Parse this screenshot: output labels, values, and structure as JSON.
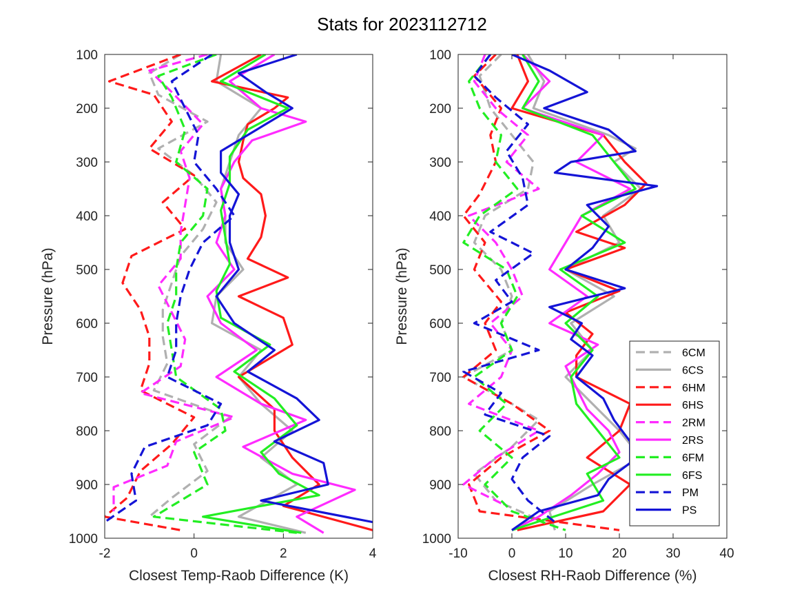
{
  "title": "Stats for 2023112712",
  "colors": {
    "6C": "#b0b0b0",
    "6H": "#ff1a1a",
    "2R": "#ff2bff",
    "6F": "#22ee22",
    "P": "#1414d6"
  },
  "legend": {
    "placement": "bottom-right of right panel",
    "entries": [
      {
        "label": "6CM",
        "color": "#b0b0b0",
        "dash": true
      },
      {
        "label": "6CS",
        "color": "#b0b0b0",
        "dash": false
      },
      {
        "label": "6HM",
        "color": "#ff1a1a",
        "dash": true
      },
      {
        "label": "6HS",
        "color": "#ff1a1a",
        "dash": false
      },
      {
        "label": "2RM",
        "color": "#ff2bff",
        "dash": true
      },
      {
        "label": "2RS",
        "color": "#ff2bff",
        "dash": false
      },
      {
        "label": "6FM",
        "color": "#22ee22",
        "dash": true
      },
      {
        "label": "6FS",
        "color": "#22ee22",
        "dash": false
      },
      {
        "label": "PM",
        "color": "#1414d6",
        "dash": true
      },
      {
        "label": "PS",
        "color": "#1414d6",
        "dash": false
      }
    ]
  },
  "chart_data": [
    {
      "type": "line",
      "xlabel": "Closest Temp-Raob Difference (K)",
      "ylabel": "Pressure (hPa)",
      "xlim": [
        -2,
        4
      ],
      "ylim": [
        100,
        1000
      ],
      "y_reversed": true,
      "xticks": [
        -2,
        0,
        2,
        4
      ],
      "yticks": [
        100,
        200,
        300,
        400,
        500,
        600,
        700,
        800,
        900,
        1000
      ],
      "grid": false,
      "series": [
        {
          "name": "6CM",
          "y": [
            100,
            135,
            175,
            225,
            275,
            325,
            375,
            425,
            475,
            525,
            575,
            625,
            675,
            725,
            775,
            825,
            875,
            925,
            960
          ],
          "x": [
            -0.3,
            -1.0,
            -0.8,
            0.3,
            -0.8,
            0.0,
            0.5,
            0.2,
            -0.3,
            -0.5,
            -0.7,
            -0.7,
            -0.6,
            -0.9,
            0.8,
            0.0,
            0.3,
            -0.5,
            -1.0
          ]
        },
        {
          "name": "6CS",
          "y": [
            100,
            150,
            200,
            250,
            300,
            350,
            400,
            450,
            500,
            550,
            600,
            650,
            700,
            750,
            800,
            850,
            900,
            960,
            990
          ],
          "x": [
            0.6,
            0.5,
            1.5,
            1.0,
            0.8,
            0.6,
            0.7,
            0.7,
            1.1,
            0.5,
            0.4,
            1.5,
            1.0,
            1.5,
            2.2,
            1.5,
            2.3,
            1.0,
            2.5
          ]
        },
        {
          "name": "6HM",
          "y": [
            100,
            150,
            175,
            225,
            275,
            325,
            375,
            425,
            475,
            525,
            575,
            625,
            675,
            725,
            775,
            825,
            875,
            925,
            960,
            985
          ],
          "x": [
            -0.3,
            -1.9,
            -0.9,
            -0.5,
            -1.0,
            0.0,
            -0.7,
            -0.2,
            -1.4,
            -1.6,
            -1.2,
            -1.0,
            -1.0,
            -1.2,
            0.0,
            -0.5,
            -1.2,
            -1.5,
            -2.0,
            -0.3
          ]
        },
        {
          "name": "6HS",
          "y": [
            100,
            150,
            180,
            200,
            230,
            260,
            300,
            330,
            360,
            400,
            440,
            480,
            515,
            550,
            590,
            640,
            700,
            760,
            800,
            850,
            900,
            940,
            985
          ],
          "x": [
            1.5,
            0.4,
            2.1,
            1.8,
            1.2,
            1.1,
            1.0,
            1.1,
            1.5,
            1.6,
            1.5,
            1.2,
            2.1,
            1.0,
            2.0,
            2.2,
            1.0,
            1.8,
            1.8,
            2.2,
            2.8,
            2.0,
            4.0
          ]
        },
        {
          "name": "2RM",
          "y": [
            100,
            130,
            170,
            230,
            280,
            330,
            380,
            430,
            480,
            530,
            580,
            630,
            680,
            730,
            775,
            820,
            865,
            905,
            950
          ],
          "x": [
            0.3,
            -1.0,
            -0.5,
            0.2,
            -0.3,
            -0.1,
            -0.2,
            -0.3,
            -0.3,
            -0.8,
            -0.5,
            -0.2,
            -0.3,
            -1.2,
            0.9,
            -0.4,
            -0.6,
            -1.8,
            -1.8
          ]
        },
        {
          "name": "2RS",
          "y": [
            100,
            150,
            200,
            225,
            260,
            300,
            350,
            400,
            450,
            500,
            550,
            600,
            650,
            700,
            750,
            780,
            830,
            880,
            910,
            960,
            990
          ],
          "x": [
            1.8,
            0.8,
            1.5,
            2.5,
            1.3,
            0.9,
            0.6,
            0.7,
            0.5,
            0.9,
            0.3,
            0.6,
            1.4,
            0.5,
            1.5,
            2.5,
            1.1,
            2.2,
            3.6,
            2.3,
            2.9
          ]
        },
        {
          "name": "6FM",
          "y": [
            100,
            140,
            180,
            240,
            300,
            350,
            400,
            450,
            500,
            550,
            600,
            650,
            700,
            760,
            800,
            840,
            900,
            960,
            990
          ],
          "x": [
            0.5,
            -0.8,
            -0.5,
            -0.2,
            -0.4,
            0.3,
            0.2,
            -0.3,
            -0.4,
            -0.4,
            -0.6,
            -0.5,
            -0.4,
            0.6,
            0.7,
            0.0,
            0.3,
            -0.9,
            2.3
          ]
        },
        {
          "name": "6FS",
          "y": [
            100,
            150,
            200,
            240,
            290,
            340,
            390,
            440,
            490,
            540,
            590,
            640,
            690,
            740,
            790,
            840,
            880,
            920,
            960,
            990
          ],
          "x": [
            1.6,
            0.6,
            2.1,
            1.2,
            0.8,
            0.8,
            0.6,
            0.7,
            0.8,
            0.5,
            0.6,
            1.7,
            0.9,
            1.8,
            2.3,
            1.5,
            1.9,
            2.8,
            0.2,
            2.4
          ]
        },
        {
          "name": "PM",
          "y": [
            100,
            150,
            200,
            250,
            300,
            350,
            400,
            450,
            500,
            550,
            600,
            650,
            700,
            750,
            790,
            830,
            880,
            930,
            970
          ],
          "x": [
            0.4,
            -0.5,
            -0.2,
            0.1,
            0.0,
            0.5,
            0.9,
            0.2,
            -0.1,
            -0.3,
            -0.4,
            -0.4,
            -0.6,
            0.6,
            0.3,
            -1.1,
            -1.4,
            -1.3,
            -2.0
          ]
        },
        {
          "name": "PS",
          "y": [
            100,
            135,
            170,
            200,
            240,
            280,
            320,
            360,
            400,
            450,
            500,
            550,
            600,
            650,
            690,
            740,
            780,
            820,
            860,
            900,
            930,
            970
          ],
          "x": [
            2.3,
            1.0,
            1.6,
            2.2,
            1.4,
            0.6,
            0.6,
            1.0,
            0.8,
            0.8,
            1.0,
            0.5,
            0.9,
            1.8,
            1.2,
            2.3,
            2.8,
            1.8,
            2.9,
            3.0,
            1.5,
            4.0
          ]
        }
      ]
    },
    {
      "type": "line",
      "xlabel": "Closest RH-Raob Difference (%)",
      "ylabel": "Pressure (hPa)",
      "xlim": [
        -10,
        40
      ],
      "ylim": [
        100,
        1000
      ],
      "y_reversed": true,
      "xticks": [
        -10,
        0,
        10,
        20,
        30,
        40
      ],
      "yticks": [
        100,
        200,
        300,
        400,
        500,
        600,
        700,
        800,
        900,
        1000
      ],
      "grid": false,
      "series": [
        {
          "name": "6CM",
          "y": [
            100,
            140,
            200,
            250,
            300,
            350,
            400,
            450,
            500,
            550,
            600,
            650,
            700,
            750,
            780,
            830,
            880,
            930,
            970
          ],
          "x": [
            -2,
            -6,
            -4,
            0,
            4,
            3,
            -5,
            -7,
            -2,
            0,
            -2,
            0,
            -9,
            0,
            5,
            0,
            -7,
            -3,
            6
          ]
        },
        {
          "name": "6CS",
          "y": [
            100,
            150,
            200,
            250,
            275,
            300,
            350,
            400,
            450,
            500,
            550,
            600,
            650,
            700,
            750,
            800,
            850,
            900,
            950,
            985
          ],
          "x": [
            3,
            6,
            4,
            18,
            23,
            19,
            24,
            17,
            20,
            10,
            19,
            11,
            15,
            10,
            15,
            20,
            24,
            15,
            7,
            8
          ]
        },
        {
          "name": "6HM",
          "y": [
            100,
            140,
            200,
            250,
            300,
            360,
            400,
            450,
            500,
            560,
            600,
            650,
            700,
            750,
            800,
            850,
            900,
            950,
            985
          ],
          "x": [
            -3,
            -7,
            -2,
            -4,
            -3,
            -6,
            -9,
            -5,
            -7,
            -2,
            -5,
            -3,
            -9,
            0,
            7,
            -2,
            -8,
            -6,
            20
          ]
        },
        {
          "name": "6HS",
          "y": [
            100,
            150,
            200,
            250,
            300,
            340,
            380,
            430,
            460,
            500,
            540,
            580,
            620,
            660,
            700,
            750,
            800,
            850,
            900,
            950,
            985
          ],
          "x": [
            1,
            3,
            0,
            17,
            21,
            25,
            21,
            12,
            21,
            10,
            20,
            10,
            15,
            12,
            12,
            22,
            20,
            14,
            22,
            17,
            1
          ]
        },
        {
          "name": "2RM",
          "y": [
            100,
            150,
            200,
            250,
            300,
            350,
            400,
            450,
            500,
            550,
            600,
            650,
            700,
            750,
            800,
            850,
            900,
            940
          ],
          "x": [
            -5,
            -7,
            -3,
            3,
            -1,
            5,
            -8,
            -3,
            0,
            2,
            -4,
            0,
            -2,
            -8,
            5,
            -3,
            -9,
            -1
          ]
        },
        {
          "name": "2RS",
          "y": [
            100,
            150,
            200,
            250,
            300,
            350,
            400,
            450,
            500,
            550,
            600,
            640,
            680,
            720,
            760,
            800,
            840,
            880,
            920,
            960,
            985
          ],
          "x": [
            2,
            7,
            2,
            17,
            12,
            22,
            13,
            10,
            7,
            14,
            7,
            16,
            10,
            12,
            14,
            18,
            20,
            16,
            11,
            5,
            0
          ]
        },
        {
          "name": "6FM",
          "y": [
            100,
            150,
            200,
            250,
            300,
            350,
            400,
            450,
            500,
            550,
            600,
            650,
            700,
            750,
            800,
            850,
            900,
            950,
            985
          ],
          "x": [
            -4,
            -8,
            -6,
            -2,
            -3,
            1,
            -6,
            -9,
            -1,
            1,
            -2,
            0,
            -7,
            -1,
            -6,
            0,
            -5,
            0,
            10
          ]
        },
        {
          "name": "6FS",
          "y": [
            100,
            150,
            200,
            250,
            300,
            350,
            400,
            450,
            500,
            550,
            600,
            650,
            700,
            750,
            800,
            850,
            880,
            930,
            985
          ],
          "x": [
            2,
            5,
            2,
            15,
            19,
            23,
            13,
            21,
            9,
            16,
            10,
            15,
            11,
            12,
            16,
            20,
            14,
            17,
            0
          ]
        },
        {
          "name": "PM",
          "y": [
            100,
            140,
            180,
            230,
            280,
            330,
            380,
            430,
            470,
            520,
            560,
            600,
            650,
            690,
            730,
            770,
            810,
            850,
            890,
            930,
            970
          ],
          "x": [
            -4,
            -7,
            -3,
            3,
            -1,
            2,
            3,
            -4,
            4,
            -3,
            0,
            -7,
            5,
            -9,
            -2,
            -5,
            7,
            2,
            0,
            3,
            8
          ]
        },
        {
          "name": "PS",
          "y": [
            100,
            130,
            170,
            200,
            240,
            280,
            300,
            320,
            345,
            380,
            420,
            460,
            500,
            535,
            570,
            600,
            630,
            660,
            700,
            740,
            780,
            820,
            860,
            890,
            920,
            950,
            985
          ],
          "x": [
            0,
            7,
            14,
            6,
            18,
            23,
            11,
            8,
            27,
            14,
            18,
            15,
            10,
            21,
            7,
            13,
            11,
            15,
            12,
            17,
            19,
            22,
            22,
            18,
            16,
            5,
            0
          ]
        }
      ]
    }
  ]
}
